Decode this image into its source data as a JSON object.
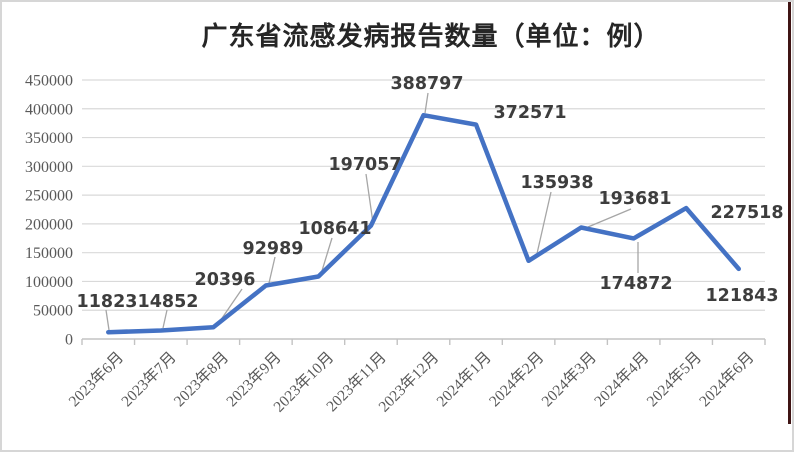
{
  "title": "广东省流感发病报告数量（单位：例）",
  "chart_data": {
    "type": "line",
    "title": "广东省流感发病报告数量（单位：例）",
    "xlabel": "",
    "ylabel": "",
    "categories": [
      "2023年6月",
      "2023年7月",
      "2023年8月",
      "2023年9月",
      "2023年10月",
      "2023年11月",
      "2023年12月",
      "2024年1月",
      "2024年2月",
      "2024年3月",
      "2024年4月",
      "2024年5月",
      "2024年6月"
    ],
    "values": [
      11823,
      14852,
      20396,
      92989,
      108641,
      197057,
      388797,
      372571,
      135938,
      193681,
      174872,
      227518,
      121843
    ],
    "data_labels": [
      "11823",
      "14852",
      "20396",
      "92989",
      "108641",
      "197057",
      "388797",
      "372571",
      "135938",
      "193681",
      "174872",
      "227518",
      "121843"
    ],
    "ylim": [
      0,
      450000
    ],
    "yticks": [
      0,
      50000,
      100000,
      150000,
      200000,
      250000,
      300000,
      350000,
      400000,
      450000
    ],
    "grid": true,
    "legend_position": "none",
    "colors": {
      "line": "#4472C4",
      "gridline": "#d9d9d9",
      "axis_line": "#c3c3c3",
      "axis_text": "#595959",
      "data_label_text": "#3d3d3d",
      "leader_line": "#a6a6a6",
      "title_text": "#262626",
      "document_border": "#3f1414"
    }
  }
}
